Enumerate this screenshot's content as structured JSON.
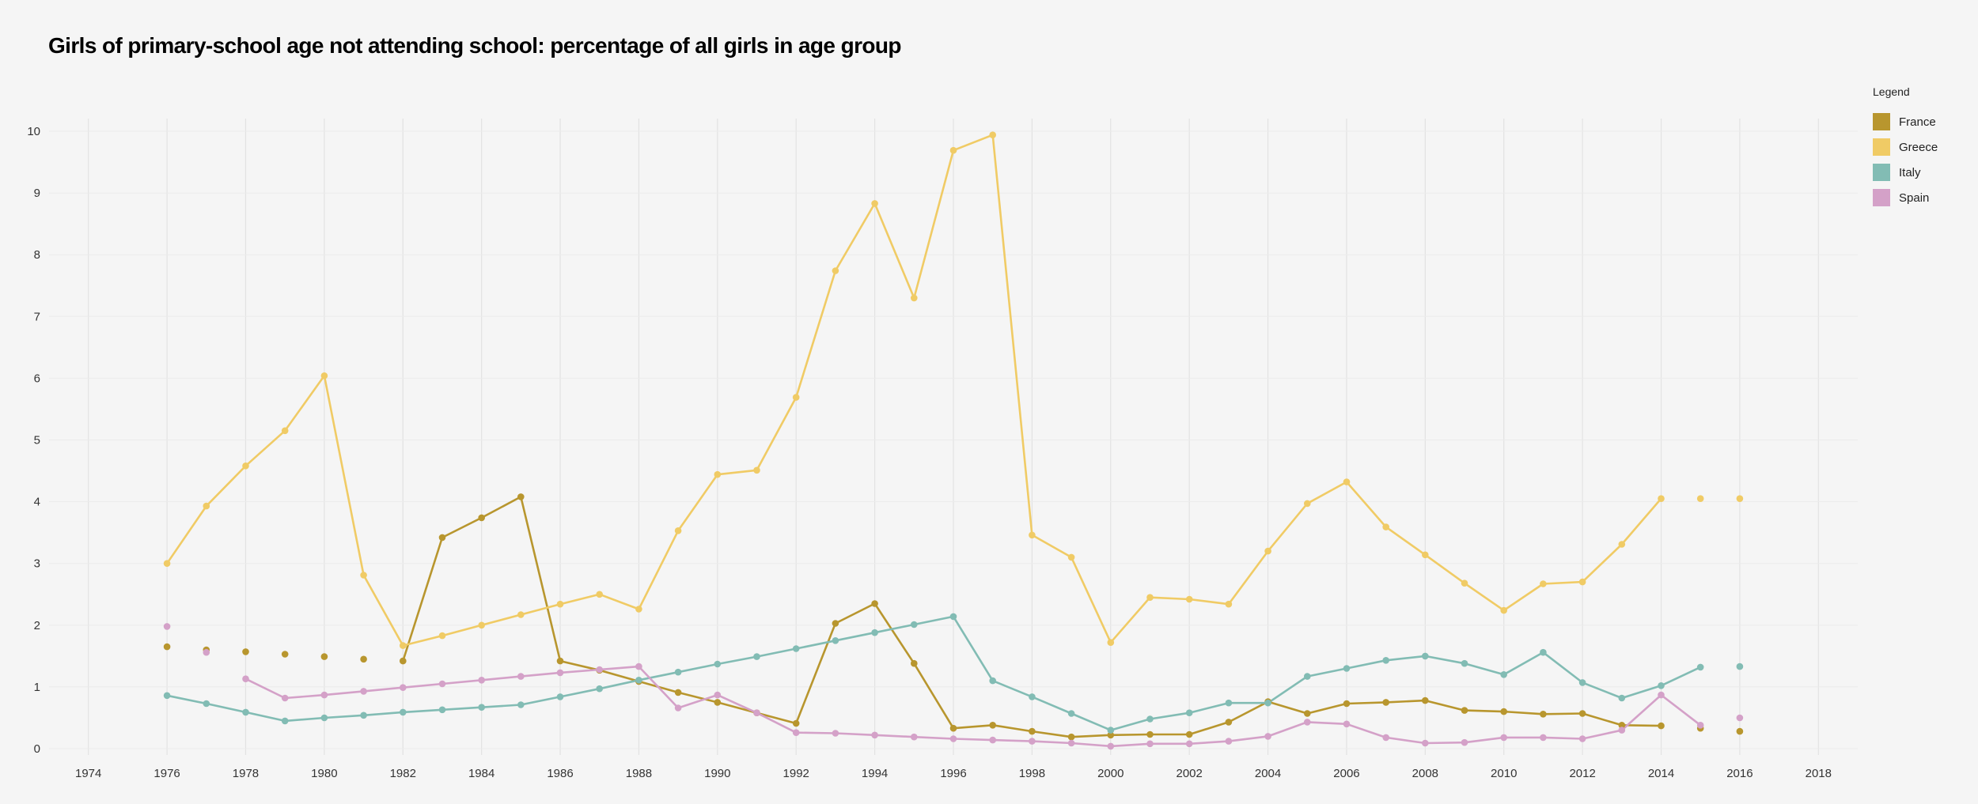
{
  "chart_data": {
    "type": "line",
    "title": "Girls of primary-school age not attending school: percentage of all girls in age group",
    "xlabel": "",
    "ylabel": "",
    "xlim": [
      1973,
      2019
    ],
    "ylim": [
      0,
      10
    ],
    "x_ticks": [
      1974,
      1976,
      1978,
      1980,
      1982,
      1984,
      1986,
      1988,
      1990,
      1992,
      1994,
      1996,
      1998,
      2000,
      2002,
      2004,
      2006,
      2008,
      2010,
      2012,
      2014,
      2016,
      2018
    ],
    "y_ticks": [
      0,
      1,
      2,
      3,
      4,
      5,
      6,
      7,
      8,
      9,
      10
    ],
    "grid": true,
    "legend_title": "Legend",
    "legend_position": "top-right",
    "x": [
      1976,
      1977,
      1978,
      1979,
      1980,
      1981,
      1982,
      1983,
      1984,
      1985,
      1986,
      1987,
      1988,
      1989,
      1990,
      1991,
      1992,
      1993,
      1994,
      1995,
      1996,
      1997,
      1998,
      1999,
      2000,
      2001,
      2002,
      2003,
      2004,
      2005,
      2006,
      2007,
      2008,
      2009,
      2010,
      2011,
      2012,
      2013,
      2014,
      2015,
      2016
    ],
    "series": [
      {
        "name": "France",
        "color": "#b8962e",
        "values": [
          1.65,
          1.6,
          1.57,
          1.53,
          1.49,
          1.45,
          1.42,
          3.42,
          3.74,
          4.08,
          1.42,
          1.27,
          1.09,
          0.91,
          0.75,
          0.58,
          0.41,
          2.03,
          2.35,
          1.38,
          0.33,
          0.38,
          0.28,
          0.19,
          0.22,
          0.23,
          0.23,
          0.43,
          0.76,
          0.57,
          0.73,
          0.75,
          0.78,
          0.62,
          0.6,
          0.56,
          0.57,
          0.38,
          0.37,
          0.33,
          0.28
        ],
        "segments": [
          [
            1982,
            2014
          ]
        ]
      },
      {
        "name": "Greece",
        "color": "#f0cb65",
        "values": [
          3.0,
          3.93,
          4.58,
          5.15,
          6.04,
          2.81,
          1.67,
          1.83,
          2.0,
          2.17,
          2.34,
          2.5,
          2.26,
          3.53,
          4.44,
          4.51,
          5.69,
          7.74,
          8.83,
          7.3,
          9.69,
          9.94,
          3.46,
          3.1,
          1.72,
          2.45,
          2.42,
          2.34,
          3.2,
          3.97,
          4.32,
          3.59,
          3.14,
          2.68,
          2.24,
          2.67,
          2.7,
          3.31,
          4.05,
          4.05,
          4.05
        ],
        "segments": [
          [
            1976,
            2014
          ]
        ]
      },
      {
        "name": "Italy",
        "color": "#82bcb4",
        "values": [
          0.86,
          0.73,
          0.59,
          0.45,
          0.5,
          0.54,
          0.59,
          0.63,
          0.67,
          0.71,
          0.84,
          0.97,
          1.11,
          1.24,
          1.37,
          1.49,
          1.62,
          1.75,
          1.88,
          2.01,
          2.14,
          1.1,
          0.84,
          0.57,
          0.3,
          0.48,
          0.58,
          0.74,
          0.74,
          1.17,
          1.3,
          1.43,
          1.5,
          1.38,
          1.2,
          1.56,
          1.07,
          0.82,
          1.02,
          1.32,
          1.33
        ],
        "segments": [
          [
            1976,
            2015
          ]
        ]
      },
      {
        "name": "Spain",
        "color": "#d4a1c8",
        "values": [
          1.98,
          1.56,
          1.13,
          0.82,
          0.87,
          0.93,
          0.99,
          1.05,
          1.11,
          1.17,
          1.23,
          1.28,
          1.33,
          0.66,
          0.87,
          0.58,
          0.26,
          0.25,
          0.22,
          0.19,
          0.16,
          0.14,
          0.12,
          0.09,
          0.04,
          0.08,
          0.08,
          0.12,
          0.2,
          0.43,
          0.4,
          0.18,
          0.09,
          0.1,
          0.18,
          0.18,
          0.16,
          0.3,
          0.87,
          0.38,
          0.5
        ],
        "segments": [
          [
            1978,
            2015
          ]
        ]
      }
    ]
  }
}
